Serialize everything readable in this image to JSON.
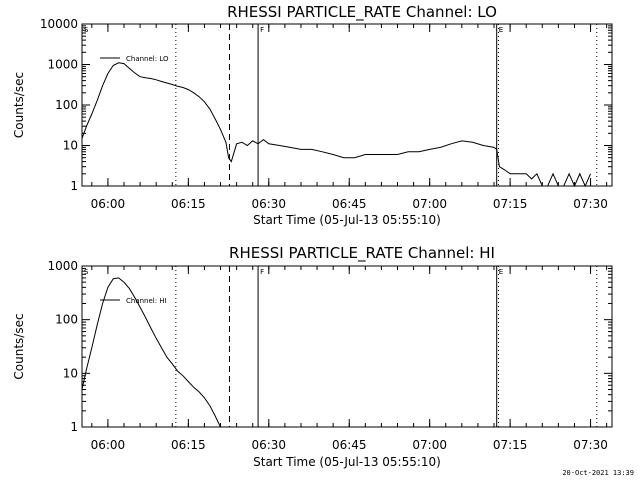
{
  "footer": {
    "timestamp": "20-Oct-2021 13:39"
  },
  "chart_data": [
    {
      "type": "line",
      "title": "RHESSI PARTICLE_RATE Channel: LO",
      "xlabel": "Start Time (05-Jul-13 05:55:10)",
      "ylabel": "Counts/sec",
      "yscale": "log",
      "xlim": [
        "05:55:10",
        "07:34:00"
      ],
      "ylim": [
        1,
        10000
      ],
      "y_ticks": [
        "1",
        "10",
        "100",
        "1000",
        "10000"
      ],
      "x_ticks": [
        "06:00",
        "06:15",
        "06:30",
        "06:45",
        "07:00",
        "07:15",
        "07:30"
      ],
      "legend": {
        "label": "Channel: LO",
        "position": "top-left"
      },
      "markers": [
        {
          "label": "S",
          "time": "05:55:10",
          "style": "none"
        },
        {
          "label": "",
          "time": "06:12:40",
          "style": "dotted"
        },
        {
          "label": "",
          "time": "06:22:40",
          "style": "dashed"
        },
        {
          "label": "F",
          "time": "06:28:00",
          "style": "solid"
        },
        {
          "label": "E",
          "time": "07:12:30",
          "style": "solid"
        },
        {
          "label": "",
          "time": "07:12:50",
          "style": "dotted"
        },
        {
          "label": "",
          "time": "07:31:10",
          "style": "dotted"
        }
      ],
      "series": [
        {
          "name": "Channel: LO",
          "x": [
            "05:55:10",
            "05:56:00",
            "05:57:00",
            "05:58:00",
            "05:59:00",
            "06:00:00",
            "06:01:00",
            "06:02:00",
            "06:03:00",
            "06:04:00",
            "06:05:00",
            "06:06:00",
            "06:07:00",
            "06:08:00",
            "06:09:00",
            "06:10:00",
            "06:11:00",
            "06:12:00",
            "06:13:00",
            "06:14:00",
            "06:15:00",
            "06:16:00",
            "06:17:00",
            "06:18:00",
            "06:19:00",
            "06:20:00",
            "06:21:00",
            "06:22:00",
            "06:22:30",
            "06:23:00",
            "06:24:00",
            "06:25:00",
            "06:26:00",
            "06:27:00",
            "06:28:00",
            "06:29:00",
            "06:30:00",
            "06:32:00",
            "06:34:00",
            "06:36:00",
            "06:38:00",
            "06:40:00",
            "06:42:00",
            "06:44:00",
            "06:46:00",
            "06:48:00",
            "06:50:00",
            "06:52:00",
            "06:54:00",
            "06:56:00",
            "06:58:00",
            "07:00:00",
            "07:02:00",
            "07:04:00",
            "07:06:00",
            "07:08:00",
            "07:10:00",
            "07:12:00",
            "07:12:30",
            "07:13:00",
            "07:14:00",
            "07:15:00",
            "07:16:00",
            "07:17:00",
            "07:18:00",
            "07:19:00",
            "07:20:00",
            "07:21:00",
            "07:22:00",
            "07:23:00",
            "07:24:00",
            "07:25:00",
            "07:26:00",
            "07:27:00",
            "07:28:00",
            "07:29:00",
            "07:30:00"
          ],
          "y": [
            15,
            30,
            60,
            130,
            300,
            600,
            950,
            1100,
            1050,
            800,
            620,
            500,
            470,
            450,
            420,
            380,
            350,
            320,
            290,
            270,
            240,
            200,
            160,
            120,
            80,
            45,
            25,
            12,
            5,
            4,
            11,
            12,
            10,
            13,
            11,
            14,
            11,
            10,
            9,
            8,
            8,
            7,
            6,
            5,
            5,
            6,
            6,
            6,
            6,
            7,
            7,
            8,
            9,
            11,
            13,
            12,
            10,
            9,
            8,
            3,
            2.5,
            2,
            2,
            2,
            2,
            1.5,
            2,
            1,
            1,
            2,
            1,
            1,
            2,
            1,
            2,
            1,
            2
          ]
        }
      ]
    },
    {
      "type": "line",
      "title": "RHESSI PARTICLE_RATE Channel: HI",
      "xlabel": "Start Time (05-Jul-13 05:55:10)",
      "ylabel": "Counts/sec",
      "yscale": "log",
      "xlim": [
        "05:55:10",
        "07:34:00"
      ],
      "ylim": [
        1,
        1000
      ],
      "y_ticks": [
        "1",
        "10",
        "100",
        "1000"
      ],
      "x_ticks": [
        "06:00",
        "06:15",
        "06:30",
        "06:45",
        "07:00",
        "07:15",
        "07:30"
      ],
      "legend": {
        "label": "Channel: HI",
        "position": "top-left"
      },
      "markers": [
        {
          "label": "S",
          "time": "05:55:10",
          "style": "none"
        },
        {
          "label": "",
          "time": "06:12:40",
          "style": "dotted"
        },
        {
          "label": "",
          "time": "06:22:40",
          "style": "dashed"
        },
        {
          "label": "F",
          "time": "06:28:00",
          "style": "solid"
        },
        {
          "label": "E",
          "time": "07:12:30",
          "style": "solid"
        },
        {
          "label": "",
          "time": "07:12:50",
          "style": "dotted"
        },
        {
          "label": "",
          "time": "07:31:10",
          "style": "dotted"
        }
      ],
      "series": [
        {
          "name": "Channel: HI",
          "x": [
            "05:55:10",
            "05:56:00",
            "05:57:00",
            "05:58:00",
            "05:59:00",
            "06:00:00",
            "06:01:00",
            "06:02:00",
            "06:03:00",
            "06:04:00",
            "06:05:00",
            "06:06:00",
            "06:07:00",
            "06:08:00",
            "06:09:00",
            "06:10:00",
            "06:11:00",
            "06:12:00",
            "06:13:00",
            "06:14:00",
            "06:15:00",
            "06:16:00",
            "06:17:00",
            "06:18:00",
            "06:19:00",
            "06:20:00",
            "06:21:00"
          ],
          "y": [
            5,
            12,
            30,
            80,
            200,
            400,
            580,
            600,
            500,
            380,
            260,
            170,
            110,
            70,
            45,
            30,
            20,
            15,
            11,
            9,
            7,
            5.5,
            4.5,
            3.5,
            2.5,
            1.6,
            1
          ]
        }
      ]
    }
  ]
}
